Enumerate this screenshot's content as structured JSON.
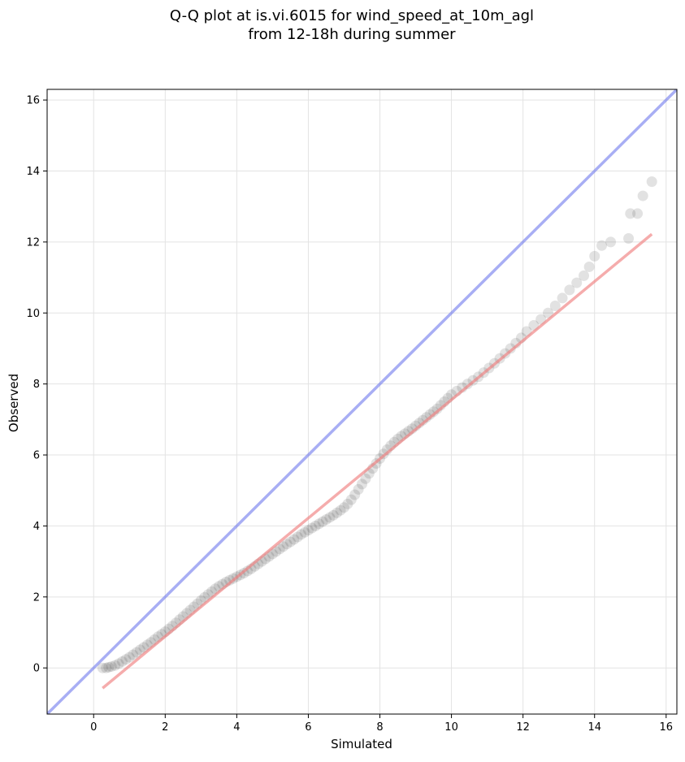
{
  "chart_data": {
    "type": "scatter",
    "title_lines": [
      "Q-Q plot at is.vi.6015 for wind_speed_at_10m_agl",
      "from 12-18h during summer"
    ],
    "xlabel": "Simulated",
    "ylabel": "Observed",
    "xlim": [
      -1.3,
      16.3
    ],
    "ylim": [
      -1.3,
      16.3
    ],
    "xticks": [
      0,
      2,
      4,
      6,
      8,
      10,
      12,
      14,
      16
    ],
    "yticks": [
      0,
      2,
      4,
      6,
      8,
      10,
      12,
      14,
      16
    ],
    "grid": true,
    "identity_line": {
      "color": "#6e78ec",
      "from": [
        -1.3,
        -1.3
      ],
      "to": [
        16.3,
        16.3
      ]
    },
    "fit_line": {
      "color": "#f08080",
      "from": [
        0.25,
        -0.57
      ],
      "to": [
        15.6,
        12.22
      ]
    },
    "points_color": "#303030",
    "points": [
      [
        0.25,
        0.0
      ],
      [
        0.35,
        0.0
      ],
      [
        0.42,
        0.02
      ],
      [
        0.5,
        0.04
      ],
      [
        0.6,
        0.07
      ],
      [
        0.7,
        0.12
      ],
      [
        0.8,
        0.18
      ],
      [
        0.9,
        0.24
      ],
      [
        1.0,
        0.3
      ],
      [
        1.1,
        0.37
      ],
      [
        1.2,
        0.44
      ],
      [
        1.3,
        0.51
      ],
      [
        1.4,
        0.58
      ],
      [
        1.5,
        0.65
      ],
      [
        1.6,
        0.72
      ],
      [
        1.7,
        0.8
      ],
      [
        1.8,
        0.88
      ],
      [
        1.9,
        0.95
      ],
      [
        2.0,
        1.02
      ],
      [
        2.1,
        1.1
      ],
      [
        2.2,
        1.18
      ],
      [
        2.3,
        1.27
      ],
      [
        2.4,
        1.36
      ],
      [
        2.5,
        1.45
      ],
      [
        2.6,
        1.54
      ],
      [
        2.7,
        1.63
      ],
      [
        2.8,
        1.72
      ],
      [
        2.9,
        1.81
      ],
      [
        3.0,
        1.9
      ],
      [
        3.1,
        1.99
      ],
      [
        3.2,
        2.07
      ],
      [
        3.3,
        2.15
      ],
      [
        3.4,
        2.23
      ],
      [
        3.5,
        2.3
      ],
      [
        3.6,
        2.36
      ],
      [
        3.7,
        2.42
      ],
      [
        3.8,
        2.47
      ],
      [
        3.9,
        2.52
      ],
      [
        4.0,
        2.57
      ],
      [
        4.1,
        2.62
      ],
      [
        4.2,
        2.67
      ],
      [
        4.3,
        2.73
      ],
      [
        4.4,
        2.79
      ],
      [
        4.5,
        2.86
      ],
      [
        4.6,
        2.93
      ],
      [
        4.7,
        3.0
      ],
      [
        4.8,
        3.07
      ],
      [
        4.9,
        3.14
      ],
      [
        5.0,
        3.21
      ],
      [
        5.1,
        3.28
      ],
      [
        5.2,
        3.35
      ],
      [
        5.3,
        3.42
      ],
      [
        5.4,
        3.49
      ],
      [
        5.5,
        3.55
      ],
      [
        5.6,
        3.62
      ],
      [
        5.7,
        3.69
      ],
      [
        5.8,
        3.76
      ],
      [
        5.9,
        3.82
      ],
      [
        6.0,
        3.88
      ],
      [
        6.1,
        3.94
      ],
      [
        6.2,
        4.0
      ],
      [
        6.3,
        4.06
      ],
      [
        6.4,
        4.12
      ],
      [
        6.5,
        4.18
      ],
      [
        6.6,
        4.24
      ],
      [
        6.7,
        4.3
      ],
      [
        6.8,
        4.37
      ],
      [
        6.9,
        4.44
      ],
      [
        7.0,
        4.52
      ],
      [
        7.1,
        4.62
      ],
      [
        7.2,
        4.74
      ],
      [
        7.3,
        4.88
      ],
      [
        7.4,
        5.03
      ],
      [
        7.5,
        5.18
      ],
      [
        7.6,
        5.33
      ],
      [
        7.7,
        5.48
      ],
      [
        7.8,
        5.62
      ],
      [
        7.9,
        5.76
      ],
      [
        8.0,
        5.9
      ],
      [
        8.1,
        6.03
      ],
      [
        8.2,
        6.15
      ],
      [
        8.3,
        6.26
      ],
      [
        8.4,
        6.36
      ],
      [
        8.5,
        6.45
      ],
      [
        8.6,
        6.53
      ],
      [
        8.7,
        6.6
      ],
      [
        8.8,
        6.67
      ],
      [
        8.9,
        6.74
      ],
      [
        9.0,
        6.82
      ],
      [
        9.1,
        6.9
      ],
      [
        9.2,
        6.98
      ],
      [
        9.3,
        7.06
      ],
      [
        9.4,
        7.14
      ],
      [
        9.5,
        7.22
      ],
      [
        9.6,
        7.3
      ],
      [
        9.7,
        7.4
      ],
      [
        9.8,
        7.5
      ],
      [
        9.9,
        7.6
      ],
      [
        10.0,
        7.7
      ],
      [
        10.15,
        7.8
      ],
      [
        10.3,
        7.9
      ],
      [
        10.45,
        8.0
      ],
      [
        10.6,
        8.1
      ],
      [
        10.75,
        8.2
      ],
      [
        10.9,
        8.32
      ],
      [
        11.05,
        8.45
      ],
      [
        11.2,
        8.58
      ],
      [
        11.35,
        8.72
      ],
      [
        11.5,
        8.86
      ],
      [
        11.65,
        9.0
      ],
      [
        11.8,
        9.15
      ],
      [
        11.95,
        9.3
      ],
      [
        12.1,
        9.48
      ],
      [
        12.3,
        9.65
      ],
      [
        12.5,
        9.82
      ],
      [
        12.7,
        10.0
      ],
      [
        12.9,
        10.2
      ],
      [
        13.1,
        10.42
      ],
      [
        13.3,
        10.65
      ],
      [
        13.5,
        10.85
      ],
      [
        13.7,
        11.05
      ],
      [
        13.85,
        11.3
      ],
      [
        14.0,
        11.6
      ],
      [
        14.2,
        11.9
      ],
      [
        14.45,
        12.0
      ],
      [
        14.95,
        12.1
      ],
      [
        15.0,
        12.8
      ],
      [
        15.2,
        12.8
      ],
      [
        15.35,
        13.3
      ],
      [
        15.6,
        13.7
      ]
    ]
  }
}
